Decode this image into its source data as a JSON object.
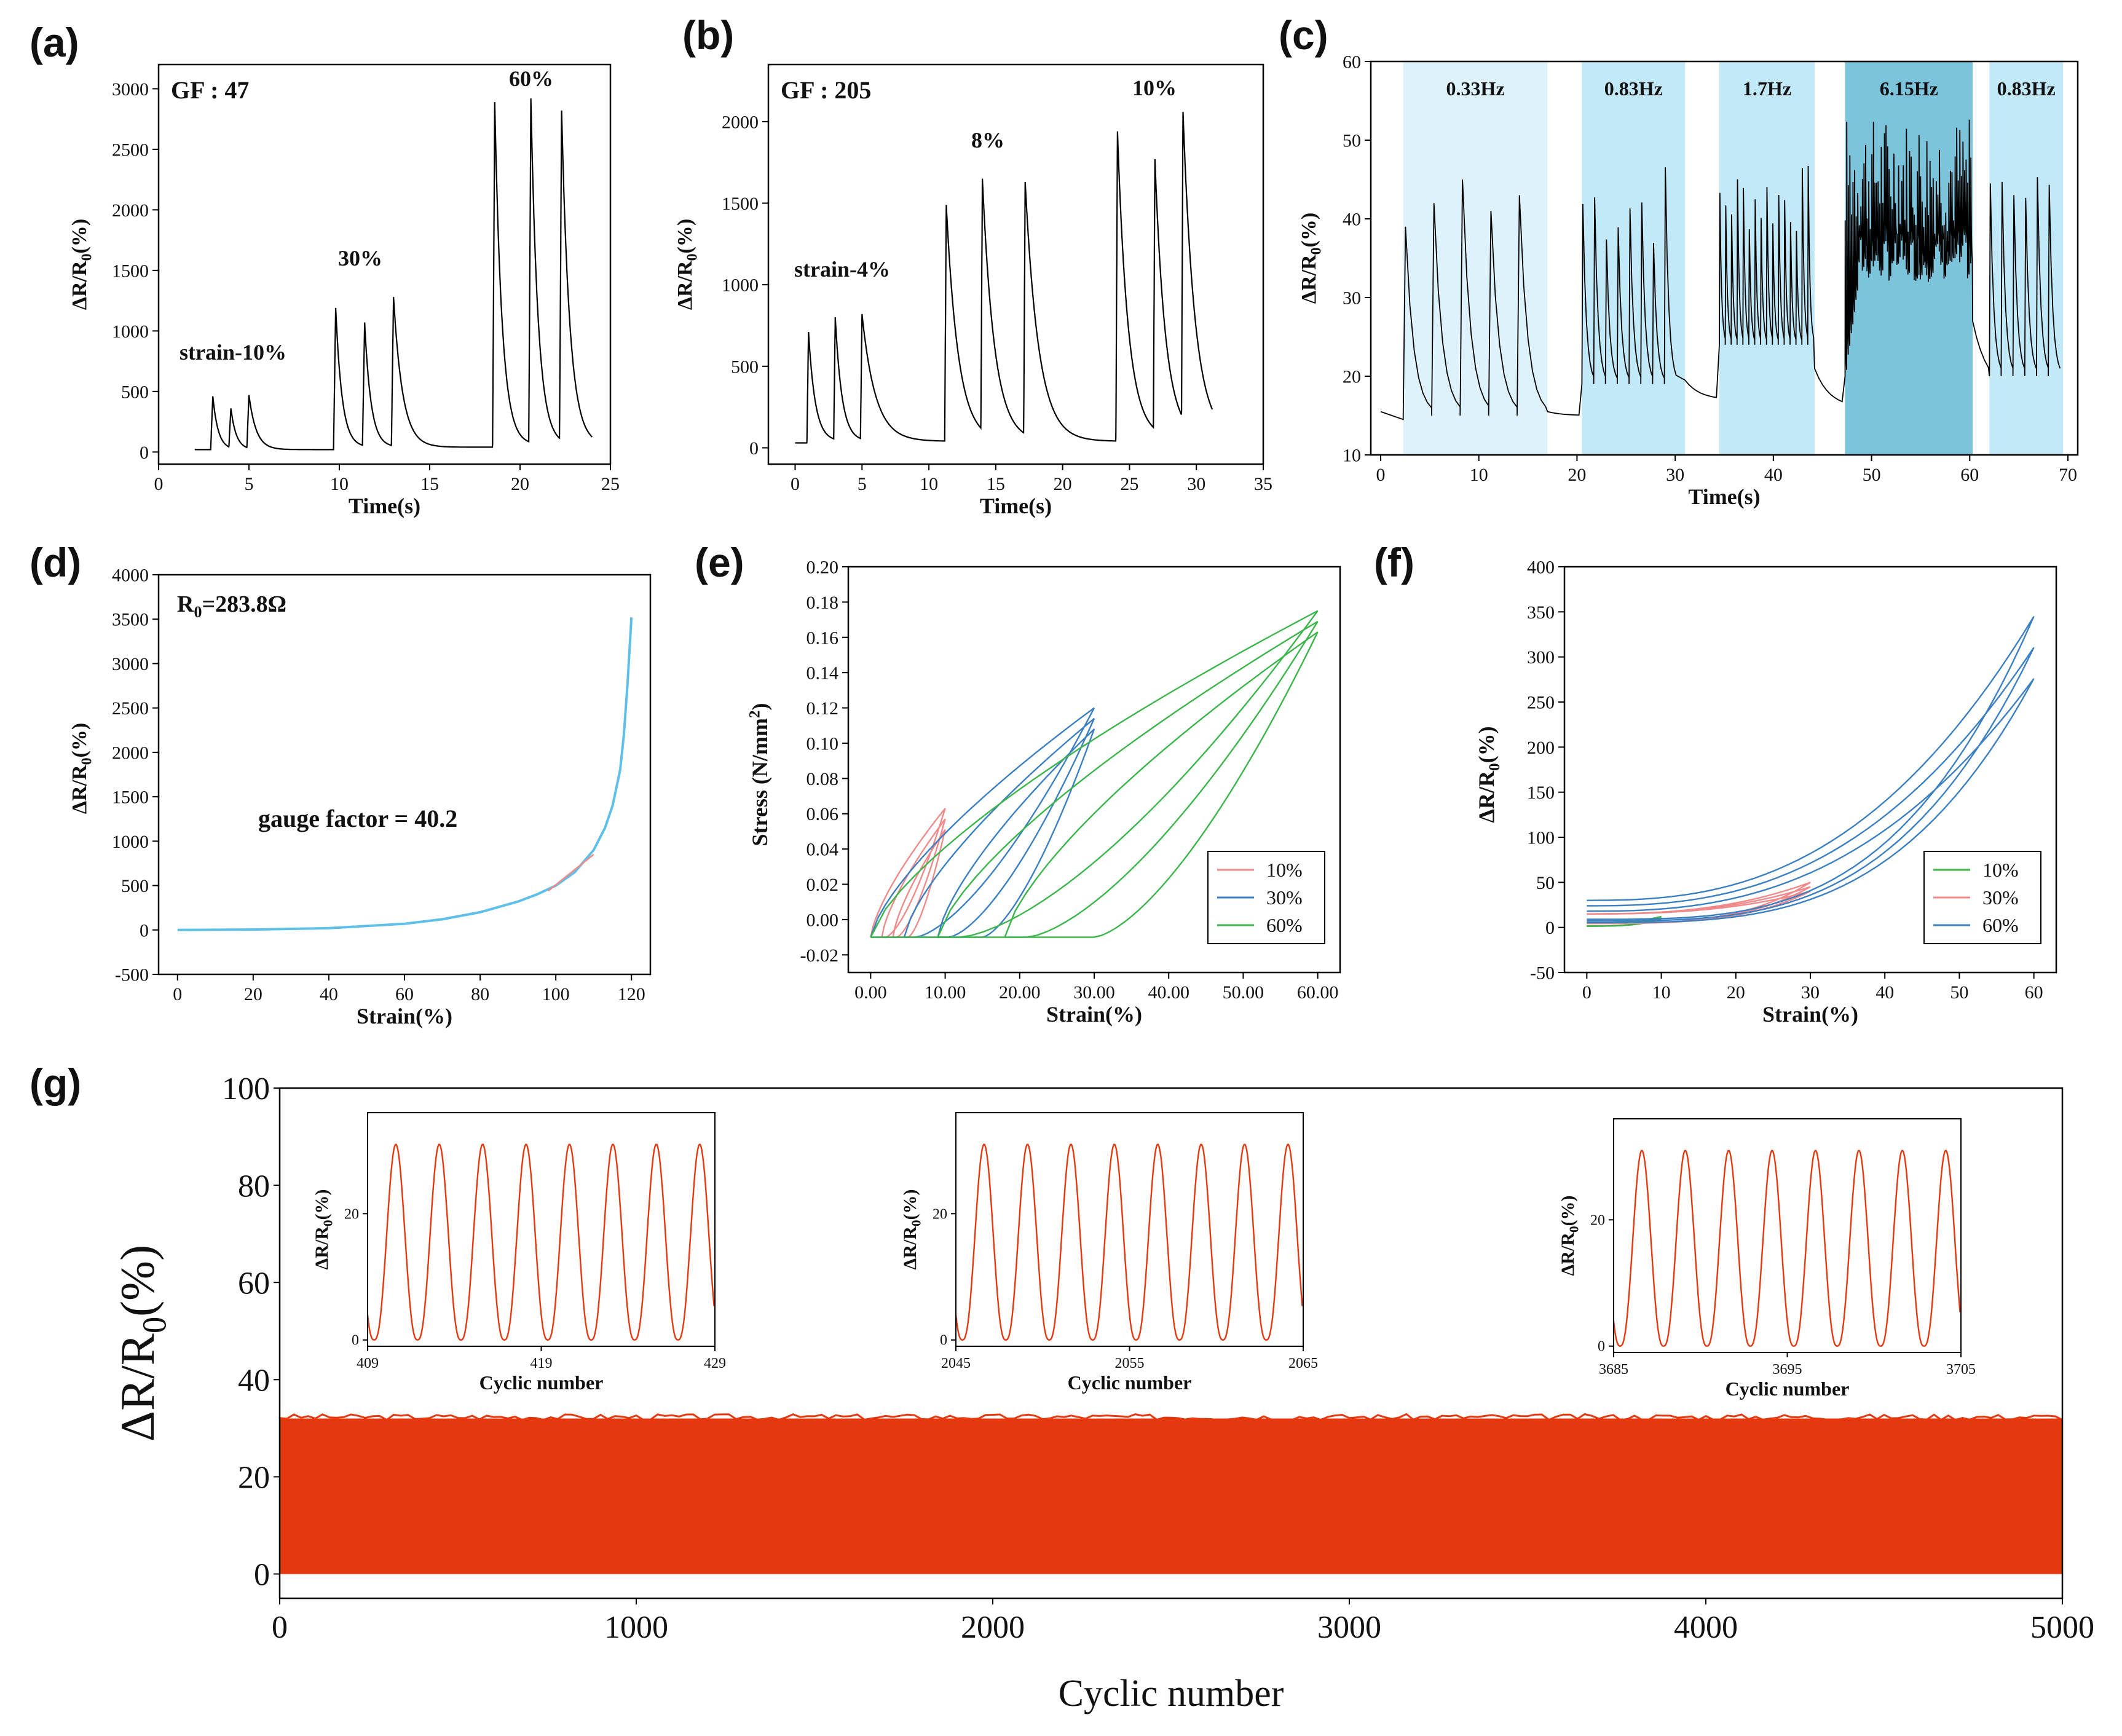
{
  "panel_labels": [
    "(a)",
    "(b)",
    "(c)",
    "(d)",
    "(e)",
    "(f)",
    "(g)"
  ],
  "colors": {
    "black": "#000000",
    "red": "#f08a8a",
    "blue": "#3a7fc1",
    "green": "#3ab54a",
    "cyan": "#5ec0e8",
    "redfill": "#e5380e",
    "band_light": "#ddf2fb",
    "band_mid": "#c2e9f8",
    "band_dark": "#7cc3dc"
  },
  "chart_data": [
    {
      "id": "a",
      "type": "line",
      "xlabel": "Time(s)",
      "ylabel": "ΔR/R0(%)",
      "xlim": [
        0,
        25
      ],
      "ylim": [
        -100,
        3200
      ],
      "xticks": [
        0,
        5,
        10,
        15,
        20,
        25
      ],
      "yticks": [
        0,
        500,
        1000,
        1500,
        2000,
        2500,
        3000
      ],
      "annotations": [
        "GF : 47",
        "strain-10%",
        "30%",
        "60%"
      ],
      "baseline": [
        [
          2,
          0
        ],
        [
          9.8,
          0
        ],
        [
          18.5,
          0
        ],
        [
          23.5,
          0
        ]
      ],
      "peaks": [
        {
          "t": 3.0,
          "v": 460,
          "base": 20,
          "decay": 0.3
        },
        {
          "t": 4.0,
          "v": 360,
          "base": 20,
          "decay": 0.3
        },
        {
          "t": 5.0,
          "v": 470,
          "base": 20,
          "decay": 0.4
        },
        {
          "t": 9.8,
          "v": 1190,
          "base": 40,
          "decay": 0.35
        },
        {
          "t": 11.4,
          "v": 1070,
          "base": 40,
          "decay": 0.35
        },
        {
          "t": 13.0,
          "v": 1280,
          "base": 40,
          "decay": 0.5
        },
        {
          "t": 18.6,
          "v": 2890,
          "base": 60,
          "decay": 0.4
        },
        {
          "t": 20.6,
          "v": 2920,
          "base": 60,
          "decay": 0.4
        },
        {
          "t": 22.3,
          "v": 2820,
          "base": 60,
          "decay": 0.45
        }
      ]
    },
    {
      "id": "b",
      "type": "line",
      "xlabel": "Time(s)",
      "ylabel": "ΔR/R0(%)",
      "xlim": [
        -2,
        35
      ],
      "ylim": [
        -100,
        2350
      ],
      "xticks": [
        0,
        5,
        10,
        15,
        20,
        25,
        30,
        35
      ],
      "yticks": [
        0,
        500,
        1000,
        1500,
        2000
      ],
      "annotations": [
        "GF : 205",
        "strain-4%",
        "8%",
        "10%"
      ],
      "peaks": [
        {
          "t": 1.0,
          "v": 710,
          "base": 40,
          "decay": 0.5
        },
        {
          "t": 3.0,
          "v": 800,
          "base": 40,
          "decay": 0.5
        },
        {
          "t": 5.0,
          "v": 820,
          "base": 40,
          "decay": 1.0
        },
        {
          "t": 11.3,
          "v": 1490,
          "base": 40,
          "decay": 0.9
        },
        {
          "t": 14.0,
          "v": 1650,
          "base": 40,
          "decay": 0.9
        },
        {
          "t": 17.2,
          "v": 1630,
          "base": 40,
          "decay": 1.0
        },
        {
          "t": 24.1,
          "v": 1940,
          "base": 60,
          "decay": 0.8
        },
        {
          "t": 26.9,
          "v": 1770,
          "base": 60,
          "decay": 0.8
        },
        {
          "t": 29.0,
          "v": 2060,
          "base": 60,
          "decay": 0.9
        }
      ]
    },
    {
      "id": "c",
      "type": "line",
      "xlabel": "Time(s)",
      "ylabel": "ΔR/R0(%)",
      "xlim": [
        -1,
        71
      ],
      "ylim": [
        10,
        60
      ],
      "xticks": [
        0,
        10,
        20,
        30,
        40,
        50,
        60,
        70
      ],
      "yticks": [
        10,
        20,
        30,
        40,
        50,
        60
      ],
      "bands": [
        {
          "label": "0.33Hz",
          "from": 2.3,
          "to": 17.0,
          "shade": "light"
        },
        {
          "label": "0.83Hz",
          "from": 20.5,
          "to": 31.0,
          "shade": "mid"
        },
        {
          "label": "1.7Hz",
          "from": 34.5,
          "to": 44.2,
          "shade": "mid"
        },
        {
          "label": "6.15Hz",
          "from": 47.3,
          "to": 60.3,
          "shade": "dark"
        },
        {
          "label": "0.83Hz",
          "from": 62.0,
          "to": 69.5,
          "shade": "mid"
        }
      ]
    },
    {
      "id": "d",
      "type": "line",
      "xlabel": "Strain(%)",
      "ylabel": "ΔR/R0(%)",
      "xlim": [
        -5,
        125
      ],
      "ylim": [
        -500,
        4000
      ],
      "xticks": [
        0,
        20,
        40,
        60,
        80,
        100,
        120
      ],
      "yticks": [
        -500,
        0,
        500,
        1000,
        1500,
        2000,
        2500,
        3000,
        3500,
        4000
      ],
      "annotations": [
        "R0=283.8Ω",
        "gauge factor = 40.2"
      ],
      "x": [
        0,
        20,
        40,
        60,
        70,
        80,
        90,
        95,
        100,
        105,
        110,
        113,
        115,
        117,
        118,
        119,
        120
      ],
      "y": [
        0,
        5,
        20,
        70,
        120,
        200,
        320,
        400,
        500,
        650,
        900,
        1150,
        1400,
        1800,
        2200,
        2800,
        3520
      ]
    },
    {
      "id": "e",
      "type": "line",
      "xlabel": "Strain(%)",
      "ylabel": "Stress (N/mm2)",
      "xlim": [
        -3,
        63
      ],
      "ylim": [
        -0.03,
        0.2
      ],
      "xticks": [
        0,
        10,
        20,
        30,
        40,
        50,
        60
      ],
      "yticks": [
        -0.02,
        0.0,
        0.02,
        0.04,
        0.06,
        0.08,
        0.1,
        0.12,
        0.14,
        0.16,
        0.18,
        0.2
      ],
      "legend": [
        "10%",
        "30%",
        "60%"
      ],
      "legend_position": "bottom-right",
      "series": [
        {
          "name": "10%",
          "max_strain": 10,
          "peak_stress": 0.063,
          "cycles": 3
        },
        {
          "name": "30%",
          "max_strain": 30,
          "peak_stress": 0.12,
          "cycles": 3
        },
        {
          "name": "60%",
          "max_strain": 60,
          "peak_stress": 0.175,
          "cycles": 3
        }
      ]
    },
    {
      "id": "f",
      "type": "line",
      "xlabel": "Strain(%)",
      "ylabel": "ΔR/R0(%)",
      "xlim": [
        -3,
        63
      ],
      "ylim": [
        -50,
        400
      ],
      "xticks": [
        0,
        10,
        20,
        30,
        40,
        50,
        60
      ],
      "yticks": [
        -50,
        0,
        50,
        100,
        150,
        200,
        250,
        300,
        350,
        400
      ],
      "legend": [
        "10%",
        "30%",
        "60%"
      ],
      "legend_position": "bottom-right",
      "series": [
        {
          "name": "10%",
          "max_strain": 10,
          "peak": 12
        },
        {
          "name": "30%",
          "max_strain": 30,
          "peak": 50
        },
        {
          "name": "60%",
          "max_strain": 60,
          "peak": 345
        }
      ]
    },
    {
      "id": "g",
      "type": "area",
      "xlabel": "Cyclic number",
      "ylabel": "ΔR/R0(%)",
      "xlim": [
        0,
        5000
      ],
      "ylim": [
        -5,
        100
      ],
      "xticks": [
        0,
        1000,
        2000,
        3000,
        4000,
        5000
      ],
      "yticks": [
        0,
        20,
        40,
        60,
        80,
        100
      ],
      "band_min": 0,
      "band_max": 32,
      "insets": [
        {
          "xlabel": "Cyclic number",
          "ylabel": "ΔR/R0(%)",
          "xticks": [
            409,
            419,
            429
          ],
          "yticks": [
            0,
            20
          ],
          "xlim": [
            409,
            429
          ],
          "ylim": [
            -1,
            36
          ],
          "peak": 31,
          "cycles": 8
        },
        {
          "xlabel": "Cyclic number",
          "ylabel": "ΔR/R0(%)",
          "xticks": [
            2045,
            2055,
            2065
          ],
          "yticks": [
            0,
            20
          ],
          "xlim": [
            2045,
            2065
          ],
          "ylim": [
            -1,
            36
          ],
          "peak": 31,
          "cycles": 8
        },
        {
          "xlabel": "Cyclic number",
          "ylabel": "ΔR/R0(%)",
          "xticks": [
            3685,
            3695,
            3705
          ],
          "yticks": [
            0,
            20
          ],
          "xlim": [
            3685,
            3705
          ],
          "ylim": [
            -1,
            36
          ],
          "peak": 31,
          "cycles": 8
        }
      ]
    }
  ]
}
